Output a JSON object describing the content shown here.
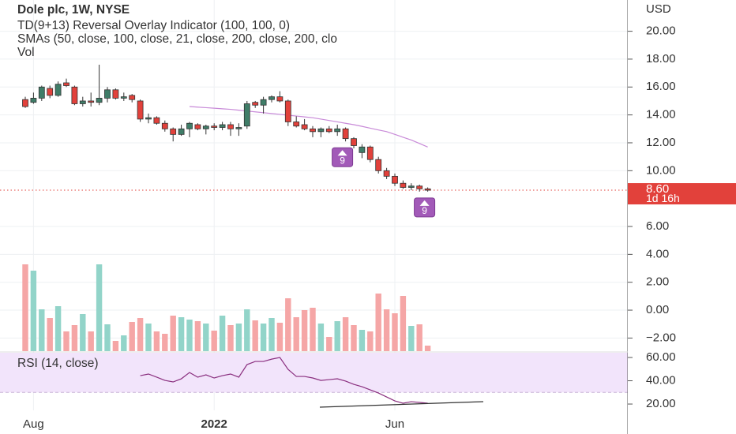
{
  "chart_data": [
    {
      "type": "candlestick",
      "title": "Dole plc, 1W, NYSE",
      "indicators": [
        "TD(9+13) Reversal Overlay Indicator (100, 100, 0)",
        "SMAs (50, close, 100, close, 21, close, 200, close, 200, clo",
        "Vol"
      ],
      "currency": "USD",
      "categories": [
        null,
        "Aug",
        null,
        null,
        null,
        null,
        null,
        null,
        null,
        null,
        null,
        null,
        null,
        null,
        null,
        null,
        null,
        null,
        null,
        null,
        null,
        null,
        null,
        "2022",
        null,
        null,
        null,
        null,
        null,
        null,
        null,
        null,
        null,
        null,
        null,
        null,
        null,
        null,
        null,
        null,
        null,
        null,
        null,
        null,
        null,
        "Jun",
        null,
        null,
        null,
        null
      ],
      "open": [
        15.1,
        14.9,
        15.2,
        15.9,
        15.4,
        16.3,
        16.0,
        14.8,
        15.0,
        14.9,
        15.2,
        15.8,
        15.2,
        15.4,
        15.0,
        13.7,
        13.8,
        13.4,
        13.0,
        12.6,
        13.0,
        13.3,
        13.0,
        13.2,
        13.1,
        13.3,
        13.0,
        13.2,
        14.9,
        14.7,
        15.1,
        15.3,
        15.0,
        13.5,
        13.3,
        13.0,
        12.8,
        13.0,
        12.8,
        13.0,
        12.3,
        11.3,
        11.7,
        10.8,
        10.0,
        9.6,
        9.1,
        8.8,
        8.9,
        8.7
      ],
      "high": [
        15.3,
        15.6,
        16.1,
        16.1,
        16.4,
        16.6,
        16.1,
        15.3,
        15.6,
        17.6,
        16.0,
        15.9,
        15.6,
        15.5,
        15.1,
        14.1,
        13.9,
        13.6,
        13.1,
        13.3,
        13.5,
        13.4,
        13.3,
        13.4,
        13.5,
        13.5,
        13.4,
        15.0,
        15.0,
        15.3,
        15.4,
        15.7,
        15.1,
        13.9,
        13.7,
        13.2,
        13.1,
        13.2,
        13.3,
        13.1,
        12.4,
        11.9,
        11.8,
        11.0,
        10.2,
        9.8,
        9.3,
        9.1,
        9.0,
        8.8
      ],
      "low": [
        14.5,
        14.8,
        15.0,
        15.2,
        15.3,
        16.0,
        14.7,
        14.6,
        14.6,
        14.7,
        14.9,
        15.1,
        15.0,
        14.9,
        13.5,
        13.4,
        13.3,
        12.8,
        12.1,
        12.5,
        12.4,
        12.9,
        12.6,
        12.9,
        12.9,
        12.5,
        12.5,
        13.0,
        14.5,
        14.1,
        14.9,
        14.9,
        13.2,
        13.1,
        12.9,
        12.4,
        12.4,
        12.7,
        12.5,
        12.1,
        11.6,
        10.9,
        10.6,
        9.8,
        9.4,
        8.9,
        8.7,
        8.6,
        8.5,
        8.5
      ],
      "close": [
        14.6,
        15.2,
        16.0,
        15.4,
        16.2,
        16.1,
        14.8,
        15.0,
        14.9,
        15.2,
        15.8,
        15.2,
        15.3,
        15.1,
        13.7,
        13.8,
        13.4,
        13.0,
        12.6,
        13.0,
        13.4,
        13.0,
        13.2,
        13.1,
        13.3,
        13.0,
        13.1,
        14.8,
        14.7,
        15.1,
        15.3,
        15.0,
        13.5,
        13.2,
        13.0,
        12.8,
        13.0,
        12.8,
        13.0,
        12.3,
        11.8,
        11.7,
        10.8,
        10.0,
        9.6,
        9.1,
        8.8,
        8.9,
        8.7,
        8.6
      ],
      "volume": [
        110,
        102,
        53,
        42,
        57,
        25,
        33,
        47,
        25,
        110,
        34,
        13,
        20,
        37,
        42,
        35,
        25,
        22,
        45,
        43,
        40,
        38,
        35,
        26,
        45,
        33,
        35,
        53,
        39,
        35,
        42,
        36,
        67,
        43,
        52,
        55,
        35,
        18,
        38,
        43,
        33,
        27,
        25,
        73,
        53,
        48,
        70,
        32,
        34,
        7
      ],
      "sma": [
        null,
        null,
        null,
        null,
        null,
        null,
        null,
        null,
        null,
        null,
        null,
        null,
        null,
        null,
        null,
        null,
        null,
        null,
        null,
        null,
        14.6,
        14.56,
        14.52,
        14.48,
        14.44,
        14.4,
        14.34,
        14.28,
        14.22,
        14.16,
        14.1,
        14.04,
        13.98,
        13.92,
        13.86,
        13.8,
        13.7,
        13.6,
        13.5,
        13.4,
        13.3,
        13.18,
        13.05,
        12.92,
        12.8,
        12.6,
        12.4,
        12.2,
        11.95,
        11.7
      ],
      "markers": [
        {
          "index": 39,
          "label": "9"
        },
        {
          "index": 49,
          "label": "9"
        }
      ],
      "up_color": "#3f7d68",
      "down_color": "#e2413b",
      "up_volume_color": "#92d4c9",
      "down_volume_color": "#f5a6a6",
      "sma_color": "#c88ad8",
      "marker_color": "#a25ab8",
      "last_price": {
        "value": 8.6,
        "label": "8.60"
      },
      "countdown": "1d 16h",
      "ylim": [
        -2.94,
        22.24
      ],
      "yticks": [
        {
          "value": -2,
          "label": "−2.00"
        },
        {
          "value": 0,
          "label": "0.00"
        },
        {
          "value": 2,
          "label": "2.00"
        },
        {
          "value": 4,
          "label": "4.00"
        },
        {
          "value": 6,
          "label": "6.00"
        },
        {
          "value": 10,
          "label": "10.00"
        },
        {
          "value": 12,
          "label": "12.00"
        },
        {
          "value": 14,
          "label": "14.00"
        },
        {
          "value": 16,
          "label": "16.00"
        },
        {
          "value": 18,
          "label": "18.00"
        },
        {
          "value": 20,
          "label": "20.00"
        }
      ],
      "grid": true
    },
    {
      "type": "line",
      "title": "RSI (14, close)",
      "values": [
        null,
        null,
        null,
        null,
        null,
        null,
        null,
        null,
        null,
        null,
        null,
        null,
        null,
        null,
        44.4,
        45.8,
        43.1,
        40.3,
        39.0,
        41.7,
        47.1,
        43.1,
        45.1,
        42.4,
        44.4,
        45.8,
        43.1,
        53.9,
        56.6,
        56.6,
        58.6,
        60.0,
        49.8,
        43.7,
        43.7,
        42.4,
        40.3,
        41.0,
        41.7,
        39.7,
        36.9,
        34.9,
        32.2,
        29.5,
        26.1,
        22.7,
        20.7,
        22.0,
        21.4,
        20.7
      ],
      "color": "#8a2f7f",
      "band": [
        30,
        70
      ],
      "band_color": "#f2e4fb",
      "ylim": [
        14.6,
        64.1
      ],
      "yticks": [
        {
          "value": 20,
          "label": "20.00"
        },
        {
          "value": 40,
          "label": "40.00"
        },
        {
          "value": 60,
          "label": "60.00"
        }
      ]
    }
  ]
}
